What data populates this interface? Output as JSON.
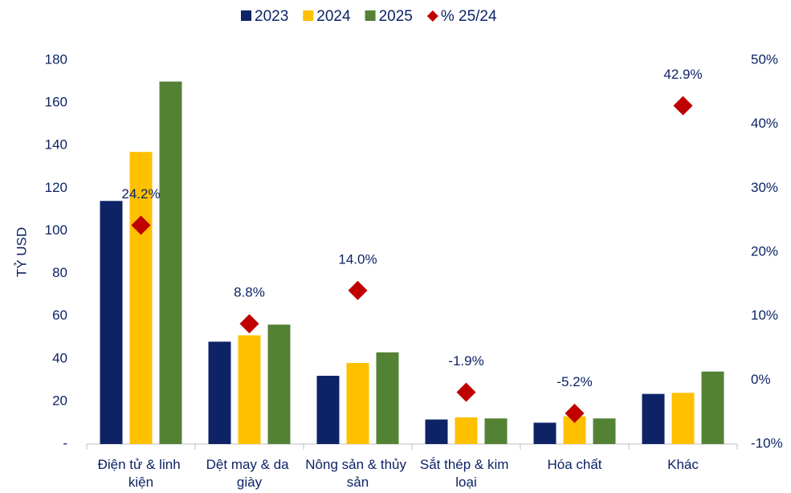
{
  "chart_data": {
    "type": "bar",
    "y_label": "TỶ USD",
    "categories": [
      "Điện tử & linh kiện",
      "Dệt may & da giày",
      "Nông sản & thủy sản",
      "Sắt thép & kim loại",
      "Hóa chất",
      "Khác"
    ],
    "series": [
      {
        "name": "2023",
        "color": "#0d2366",
        "values": [
          114,
          48,
          32,
          11.5,
          10,
          23.5
        ]
      },
      {
        "name": "2024",
        "color": "#ffc000",
        "values": [
          137,
          51,
          38,
          12.5,
          13,
          24
        ]
      },
      {
        "name": "2025",
        "color": "#548235",
        "values": [
          170,
          56,
          43,
          12,
          12,
          34
        ]
      },
      {
        "name": "% 25/24",
        "color": "#c00000",
        "axis": "y2",
        "values": [
          24.2,
          8.8,
          14.0,
          -1.9,
          -5.2,
          42.9
        ],
        "value_labels": [
          "24.2%",
          "8.8%",
          "14.0%",
          "-1.9%",
          "-5.2%",
          "42.9%"
        ]
      }
    ],
    "ylim": [
      0,
      180
    ],
    "yticks": [
      {
        "value": 0,
        "label": "-"
      },
      20,
      40,
      60,
      80,
      100,
      120,
      140,
      160,
      180
    ],
    "y2lim": [
      -10,
      50
    ],
    "y2ticks": [
      {
        "value": -10,
        "label": "-10%"
      },
      {
        "value": 0,
        "label": "0%"
      },
      {
        "value": 10,
        "label": "10%"
      },
      {
        "value": 20,
        "label": "20%"
      },
      {
        "value": 30,
        "label": "30%"
      },
      {
        "value": 40,
        "label": "40%"
      },
      {
        "value": 50,
        "label": "50%"
      }
    ],
    "legend": "top"
  }
}
